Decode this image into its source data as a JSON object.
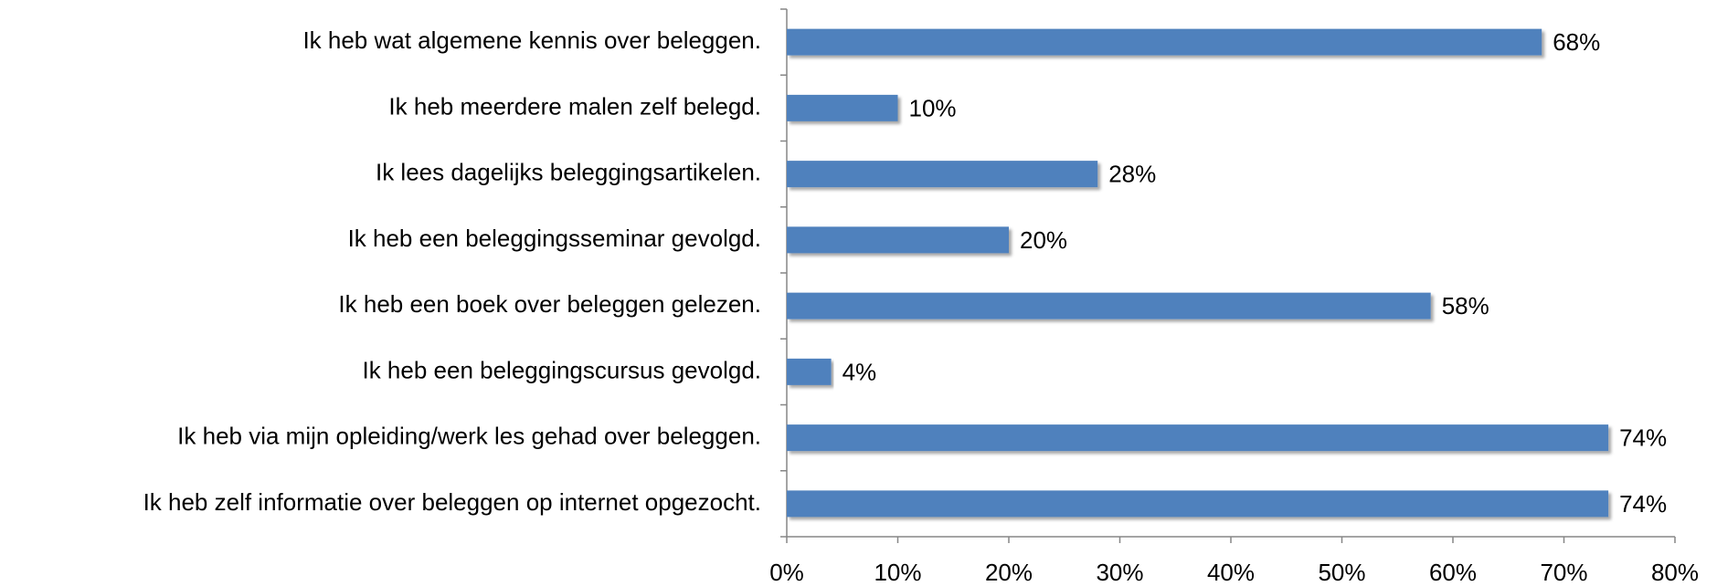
{
  "chart_data": {
    "type": "barh",
    "categories": [
      "Ik heb wat algemene kennis over beleggen.",
      "Ik heb meerdere malen zelf belegd.",
      "Ik lees dagelijks beleggingsartikelen.",
      "Ik heb een beleggingsseminar gevolgd.",
      "Ik heb een boek over beleggen gelezen.",
      "Ik heb een beleggingscursus gevolgd.",
      "Ik heb via mijn opleiding/werk les gehad over beleggen.",
      "Ik heb zelf informatie over beleggen op internet opgezocht."
    ],
    "values": [
      68,
      10,
      28,
      20,
      58,
      4,
      74,
      74
    ],
    "value_labels": [
      "68%",
      "10%",
      "28%",
      "20%",
      "58%",
      "4%",
      "74%",
      "74%"
    ],
    "color": "#4f81bd",
    "xlim": [
      0,
      80
    ],
    "xticks": [
      {
        "value": 0,
        "label": "0%"
      },
      {
        "value": 10,
        "label": "10%"
      },
      {
        "value": 20,
        "label": "20%"
      },
      {
        "value": 30,
        "label": "30%"
      },
      {
        "value": 40,
        "label": "40%"
      },
      {
        "value": 50,
        "label": "50%"
      },
      {
        "value": 60,
        "label": "60%"
      },
      {
        "value": 70,
        "label": "70%"
      },
      {
        "value": 80,
        "label": "80%"
      }
    ]
  }
}
